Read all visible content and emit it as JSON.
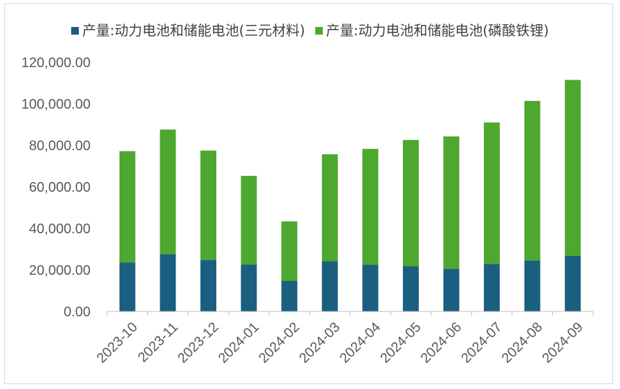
{
  "chart_data": {
    "type": "bar",
    "stacked": true,
    "title": "",
    "xlabel": "",
    "ylabel": "",
    "ylim": [
      0,
      120000
    ],
    "yticks": [
      "0.00",
      "20,000.00",
      "40,000.00",
      "60,000.00",
      "80,000.00",
      "100,000.00",
      "120,000.00"
    ],
    "ytick_values": [
      0,
      20000,
      40000,
      60000,
      80000,
      100000,
      120000
    ],
    "grid": false,
    "legend_position": "top",
    "categories": [
      "2023-10",
      "2023-11",
      "2023-12",
      "2024-01",
      "2024-02",
      "2024-03",
      "2024-04",
      "2024-05",
      "2024-06",
      "2024-07",
      "2024-08",
      "2024-09"
    ],
    "series": [
      {
        "name": "产量:动力电池和储能电池(三元材料)",
        "color": "#1a5e80",
        "values": [
          23500,
          27500,
          24800,
          22500,
          14800,
          24200,
          22600,
          21900,
          20600,
          22900,
          24600,
          26800
        ]
      },
      {
        "name": "产量:动力电池和储能电池(磷酸铁锂)",
        "color": "#4ea72e",
        "values": [
          53700,
          60100,
          52700,
          42800,
          28600,
          51500,
          55700,
          60700,
          63700,
          68100,
          76800,
          84700
        ]
      }
    ]
  }
}
